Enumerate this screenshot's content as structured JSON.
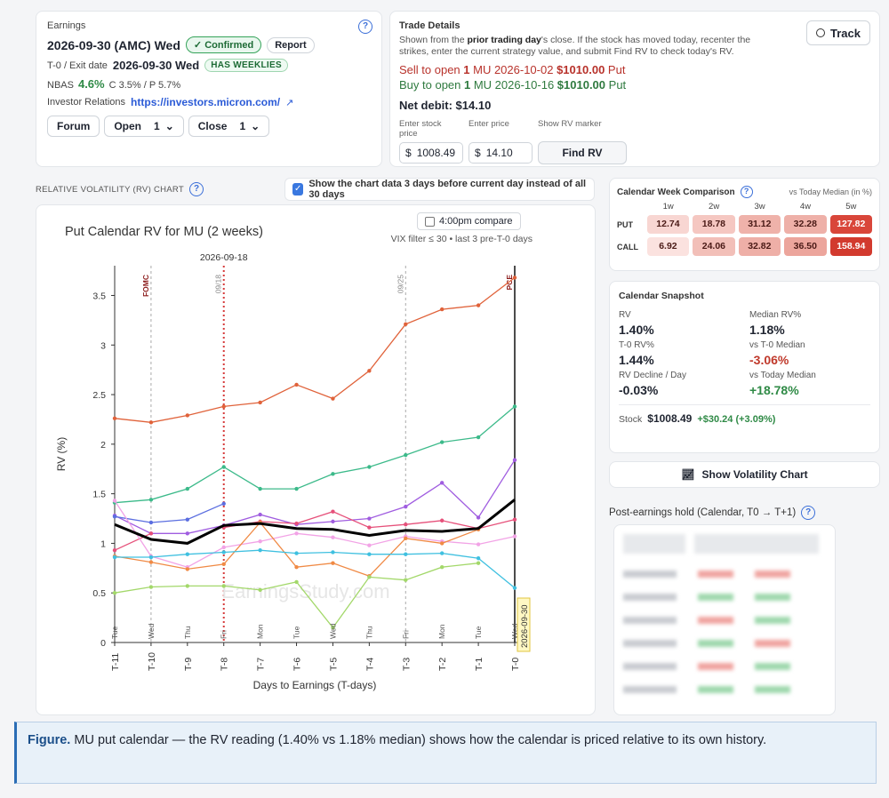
{
  "earnings": {
    "section_label": "Earnings",
    "date_line": "2026-09-30 (AMC) Wed",
    "confirmed_badge": "Confirmed",
    "report_button": "Report",
    "t0_label": "T-0 / Exit date",
    "t0_value": "2026-09-30 Wed",
    "weeklies_badge": "HAS WEEKLIES",
    "nbas_label": "NBAS",
    "nbas_value": "4.6%",
    "nbas_detail": "C 3.5% / P 5.7%",
    "ir_label": "Investor Relations",
    "ir_link": "https://investors.micron.com/",
    "forum_button": "Forum",
    "open_label": "Open",
    "open_value": "1",
    "close_label": "Close",
    "close_value": "1"
  },
  "trade": {
    "section_label": "Trade Details",
    "track_button": "Track",
    "desc_prefix": "Shown from the ",
    "desc_bold": "prior trading day",
    "desc_suffix": "'s close. If the stock has moved today, recenter the strikes, enter the current strategy value, and submit Find RV to check today's RV.",
    "sell_prefix": "Sell to open ",
    "sell_qty": "1",
    "sell_contract": " MU 2026-10-02 ",
    "sell_strike": "$1010.00",
    "sell_type": " Put",
    "buy_prefix": "Buy to open ",
    "buy_qty": "1",
    "buy_contract": " MU 2026-10-16 ",
    "buy_strike": "$1010.00",
    "buy_type": " Put",
    "net_debit": "Net debit: $14.10",
    "stock_price_label": "Enter stock price",
    "price_label": "Enter price",
    "rv_marker_label": "Show RV marker",
    "currency_symbol": "$",
    "stock_price_value": "1008.49",
    "price_value": "14.10",
    "find_rv_button": "Find RV"
  },
  "rv_section": {
    "label": "RELATIVE VOLATILITY (RV) CHART",
    "checkbox_label": "Show the chart data 3 days before current day instead of all 30 days",
    "compare_label": "4:00pm compare",
    "filter_text": "VIX filter ≤ 30 • last 3 pre-T-0 days"
  },
  "chart_data": {
    "type": "line",
    "title": "Put Calendar RV for MU (2 weeks)",
    "xlabel": "Days to Earnings (T-days)",
    "ylabel": "RV (%)",
    "ylim": [
      0,
      3.8
    ],
    "yticks": [
      0,
      0.5,
      1,
      1.5,
      2,
      2.5,
      3,
      3.5
    ],
    "categories": [
      "T-11",
      "T-10",
      "T-9",
      "T-8",
      "T-7",
      "T-6",
      "T-5",
      "T-4",
      "T-3",
      "T-2",
      "T-1",
      "T-0"
    ],
    "weekdays": [
      "Tue",
      "Wed",
      "Thu",
      "Fri",
      "Mon",
      "Tue",
      "Wed",
      "Thu",
      "Fri",
      "Mon",
      "Tue",
      "Wed"
    ],
    "markers": [
      {
        "x": "T-10",
        "label": "FOMC",
        "style": "dashed-gray",
        "label_color": "#8b1a1a"
      },
      {
        "x": "T-8",
        "label": "09/18",
        "top_label": "2026-09-18",
        "style": "dashed-red",
        "label_color": "#888"
      },
      {
        "x": "T-3",
        "label": "09/25",
        "style": "dashed-gray",
        "label_color": "#888"
      },
      {
        "x": "T-0",
        "label": "PCE",
        "style": "solid-black",
        "label_color": "#8b1a1a"
      }
    ],
    "end_tag": "2026-09-30",
    "watermark": "EarningsStudy.com",
    "series": [
      {
        "color": "#e0623a",
        "values": [
          2.26,
          2.22,
          2.29,
          2.38,
          2.42,
          2.6,
          2.46,
          2.74,
          3.21,
          3.36,
          3.4,
          3.68
        ]
      },
      {
        "color": "#3cba8a",
        "values": [
          1.41,
          1.44,
          1.55,
          1.77,
          1.55,
          1.55,
          1.7,
          1.77,
          1.89,
          2.02,
          2.07,
          2.38
        ]
      },
      {
        "color": "#a05de0",
        "values": [
          1.28,
          1.1,
          1.1,
          1.18,
          1.29,
          1.19,
          1.22,
          1.25,
          1.37,
          1.61,
          1.26,
          1.84
        ]
      },
      {
        "color": "#5b6ee0",
        "values": [
          1.27,
          1.21,
          1.24,
          1.4,
          null,
          null,
          null,
          null,
          null,
          null,
          null,
          null
        ]
      },
      {
        "color": "#e6507a",
        "values": [
          0.93,
          1.1,
          null,
          1.16,
          1.22,
          1.2,
          1.32,
          1.16,
          1.19,
          1.23,
          1.15,
          1.24
        ]
      },
      {
        "color": "#f2a3e6",
        "values": [
          1.43,
          0.87,
          0.76,
          0.96,
          1.02,
          1.1,
          1.06,
          0.98,
          1.07,
          1.02,
          0.99,
          1.07
        ]
      },
      {
        "color": "#f08a45",
        "values": [
          0.87,
          0.81,
          0.74,
          0.79,
          1.21,
          0.76,
          0.8,
          0.67,
          1.05,
          1.0,
          1.14,
          null
        ]
      },
      {
        "color": "#3fc0e0",
        "values": [
          0.86,
          0.86,
          0.89,
          0.91,
          0.93,
          0.9,
          0.91,
          0.89,
          0.89,
          0.9,
          0.85,
          0.55
        ]
      },
      {
        "color": "#a3d86a",
        "values": [
          0.5,
          0.56,
          0.57,
          0.57,
          0.53,
          0.61,
          0.15,
          0.66,
          0.63,
          0.76,
          0.8,
          null
        ]
      },
      {
        "color": "#000000",
        "bold": true,
        "values": [
          1.19,
          1.04,
          1.0,
          1.18,
          1.2,
          1.15,
          1.14,
          1.08,
          1.13,
          1.12,
          1.15,
          1.44
        ]
      }
    ]
  },
  "calendar_week": {
    "title": "Calendar Week Comparison",
    "subtitle": "vs Today Median (in %)",
    "cols": [
      "1w",
      "2w",
      "3w",
      "4w",
      "5w"
    ],
    "rows": [
      {
        "label": "PUT",
        "values": [
          "12.74",
          "18.78",
          "31.12",
          "32.28",
          "127.82"
        ],
        "colors": [
          "#f8d6d2",
          "#f5c7c1",
          "#efb2aa",
          "#eeb0a8",
          "#d9463a"
        ]
      },
      {
        "label": "CALL",
        "values": [
          "6.92",
          "24.06",
          "32.82",
          "36.50",
          "158.94"
        ],
        "colors": [
          "#fbe2df",
          "#f2bfb8",
          "#eeafa7",
          "#eca59c",
          "#d23a2e"
        ]
      }
    ]
  },
  "snapshot": {
    "title": "Calendar Snapshot",
    "rv_label": "RV",
    "rv_value": "1.40%",
    "median_label": "Median RV%",
    "median_value": "1.18%",
    "t0_label": "T-0 RV%",
    "t0_value": "1.44%",
    "vs_t0_label": "vs T-0 Median",
    "vs_t0_value": "-3.06%",
    "decline_label": "RV Decline / Day",
    "decline_value": "-0.03%",
    "vs_today_label": "vs Today Median",
    "vs_today_value": "+18.78%",
    "stock_label": "Stock",
    "stock_price": "$1008.49",
    "stock_change": "+$30.24 (+3.09%)"
  },
  "volatility_button": "Show Volatility Chart",
  "post_earnings": {
    "title": "Post-earnings hold (Calendar, T0 → T+1)",
    "blur_rows": [
      "—",
      "—",
      "—",
      "—",
      "—",
      "—"
    ]
  },
  "caption": {
    "lead": "Figure.",
    "text": " MU put calendar — the RV reading (1.40% vs 1.18% median) shows how the calendar is priced relative to its own history."
  }
}
